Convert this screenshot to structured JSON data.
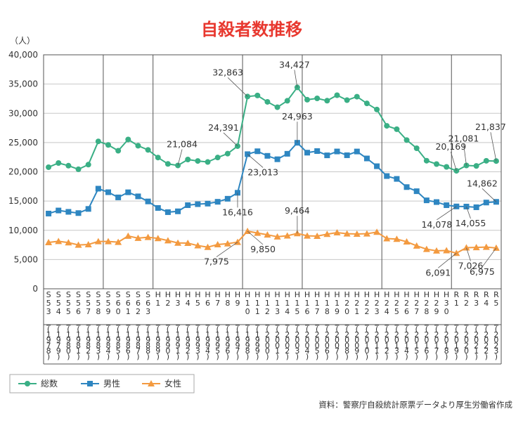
{
  "chart_data": {
    "type": "line",
    "title": "自殺者数推移",
    "unit_label": "（人）",
    "ylim": [
      0,
      40000
    ],
    "y_ticks": [
      "0",
      "5,000",
      "10,000",
      "15,000",
      "20,000",
      "25,000",
      "30,000",
      "35,000",
      "40,000"
    ],
    "grid": true,
    "x_labels": [
      {
        "era": "S53",
        "year": "1978"
      },
      {
        "era": "S54",
        "year": "1979"
      },
      {
        "era": "S55",
        "year": "1980"
      },
      {
        "era": "S56",
        "year": "1981"
      },
      {
        "era": "S57",
        "year": "1982"
      },
      {
        "era": "S58",
        "year": "1983"
      },
      {
        "era": "S59",
        "year": "1984"
      },
      {
        "era": "S60",
        "year": "1985"
      },
      {
        "era": "S61",
        "year": "1986"
      },
      {
        "era": "S62",
        "year": "1987"
      },
      {
        "era": "S63",
        "year": "1988"
      },
      {
        "era": "H1",
        "year": "1989"
      },
      {
        "era": "H2",
        "year": "1990"
      },
      {
        "era": "H3",
        "year": "1991"
      },
      {
        "era": "H4",
        "year": "1992"
      },
      {
        "era": "H5",
        "year": "1993"
      },
      {
        "era": "H6",
        "year": "1994"
      },
      {
        "era": "H7",
        "year": "1995"
      },
      {
        "era": "H8",
        "year": "1996"
      },
      {
        "era": "H9",
        "year": "1997"
      },
      {
        "era": "H10",
        "year": "1998"
      },
      {
        "era": "H11",
        "year": "1999"
      },
      {
        "era": "H12",
        "year": "2000"
      },
      {
        "era": "H13",
        "year": "2001"
      },
      {
        "era": "H14",
        "year": "2002"
      },
      {
        "era": "H15",
        "year": "2003"
      },
      {
        "era": "H16",
        "year": "2004"
      },
      {
        "era": "H17",
        "year": "2005"
      },
      {
        "era": "H18",
        "year": "2006"
      },
      {
        "era": "H19",
        "year": "2007"
      },
      {
        "era": "H20",
        "year": "2008"
      },
      {
        "era": "H21",
        "year": "2009"
      },
      {
        "era": "H22",
        "year": "2010"
      },
      {
        "era": "H23",
        "year": "2011"
      },
      {
        "era": "H24",
        "year": "2012"
      },
      {
        "era": "H25",
        "year": "2013"
      },
      {
        "era": "H26",
        "year": "2014"
      },
      {
        "era": "H27",
        "year": "2015"
      },
      {
        "era": "H28",
        "year": "2016"
      },
      {
        "era": "H29",
        "year": "2017"
      },
      {
        "era": "H30",
        "year": "2018"
      },
      {
        "era": "R1",
        "year": "2019"
      },
      {
        "era": "R2",
        "year": "2020"
      },
      {
        "era": "R3",
        "year": "2021"
      },
      {
        "era": "R4",
        "year": "2022"
      },
      {
        "era": "R5",
        "year": "2023"
      }
    ],
    "era_group_breaks_after": [
      5,
      10,
      19,
      25,
      33,
      40
    ],
    "series": [
      {
        "name": "総数",
        "color": "#3aaf85",
        "marker": "circle",
        "values": [
          20788,
          21503,
          21048,
          20434,
          21228,
          25202,
          24596,
          23599,
          25524,
          24460,
          23742,
          22436,
          21346,
          21084,
          22104,
          21851,
          21679,
          22445,
          23104,
          24391,
          32863,
          33048,
          31957,
          31042,
          32143,
          34427,
          32325,
          32552,
          32155,
          33093,
          32249,
          32845,
          31690,
          30651,
          27858,
          27283,
          25427,
          24025,
          21897,
          21321,
          20840,
          20169,
          21081,
          21007,
          21881,
          21837
        ]
      },
      {
        "name": "男性",
        "color": "#2e86c1",
        "marker": "square",
        "values": [
          12859,
          13386,
          13155,
          12942,
          13654,
          17116,
          16508,
          15624,
          16497,
          15802,
          14934,
          13818,
          13102,
          13242,
          14296,
          14468,
          14560,
          14874,
          15393,
          16416,
          23013,
          23512,
          22727,
          22144,
          23080,
          24963,
          23272,
          23540,
          22813,
          23478,
          22831,
          23472,
          22283,
          20955,
          19273,
          18787,
          17386,
          16681,
          15121,
          14826,
          14290,
          14078,
          14055,
          13939,
          14746,
          14862
        ]
      },
      {
        "name": "女性",
        "color": "#f39a40",
        "marker": "triangle",
        "values": [
          7929,
          8117,
          7893,
          7492,
          7574,
          8086,
          8088,
          7975,
          9027,
          8658,
          8808,
          8618,
          8244,
          7842,
          7808,
          7383,
          7119,
          7571,
          7711,
          7975,
          9850,
          9536,
          9230,
          8898,
          9063,
          9464,
          9053,
          9012,
          9342,
          9615,
          9418,
          9373,
          9407,
          9696,
          8585,
          8496,
          8041,
          7344,
          6776,
          6495,
          6550,
          6091,
          7026,
          7068,
          7135,
          6975
        ]
      }
    ],
    "annotations": [
      {
        "series": 0,
        "index": 13,
        "text": "21,084"
      },
      {
        "series": 0,
        "index": 19,
        "text": "24,391"
      },
      {
        "series": 0,
        "index": 20,
        "text": "32,863"
      },
      {
        "series": 0,
        "index": 25,
        "text": "34,427"
      },
      {
        "series": 0,
        "index": 41,
        "text": "20,169"
      },
      {
        "series": 0,
        "index": 42,
        "text": "21,081"
      },
      {
        "series": 0,
        "index": 45,
        "text": "21,837"
      },
      {
        "series": 1,
        "index": 19,
        "text": "16,416"
      },
      {
        "series": 1,
        "index": 20,
        "text": "23,013"
      },
      {
        "series": 1,
        "index": 25,
        "text": "24,963"
      },
      {
        "series": 1,
        "index": 41,
        "text": "14,078"
      },
      {
        "series": 1,
        "index": 42,
        "text": "14,055"
      },
      {
        "series": 1,
        "index": 45,
        "text": "14,862"
      },
      {
        "series": 2,
        "index": 19,
        "text": "7,975"
      },
      {
        "series": 2,
        "index": 20,
        "text": "9,850"
      },
      {
        "series": 2,
        "index": 25,
        "text": "9,464"
      },
      {
        "series": 2,
        "index": 41,
        "text": "6,091"
      },
      {
        "series": 2,
        "index": 42,
        "text": "7,026"
      },
      {
        "series": 2,
        "index": 45,
        "text": "6,975"
      }
    ],
    "legend": [
      "総数",
      "男性",
      "女性"
    ],
    "legend_position": "bottom-left",
    "source": "資料：警察庁自殺統計原票データより厚生労働省作成"
  }
}
